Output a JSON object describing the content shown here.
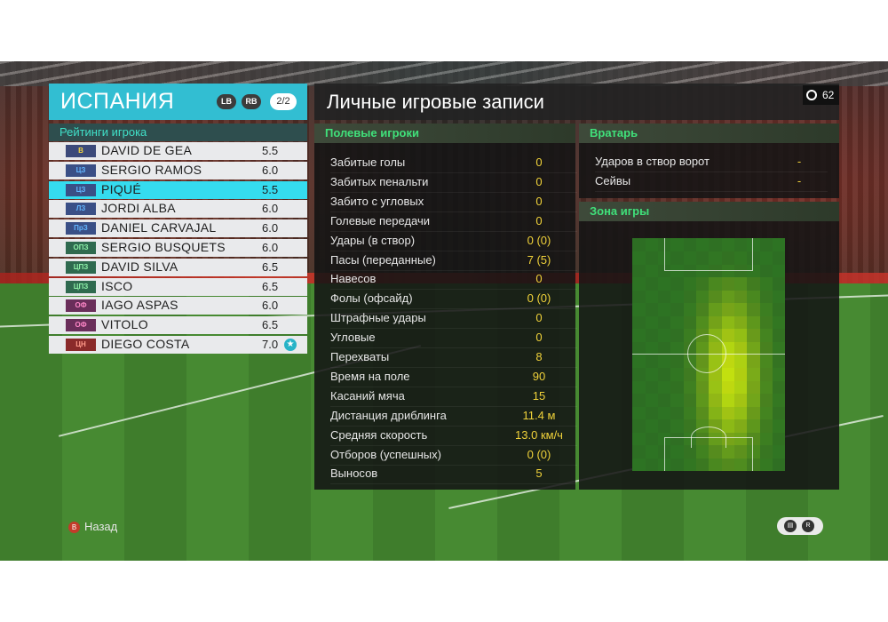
{
  "team": {
    "name": "ИСПАНИЯ",
    "lb": "LB",
    "rb": "RB",
    "page": "2/2"
  },
  "ratings_label": "Рейтинги игрока",
  "players": [
    {
      "pos": "В",
      "name": "DAVID DE GEA",
      "rating": "5.5"
    },
    {
      "pos": "ЦЗ",
      "name": "SERGIO RAMOS",
      "rating": "6.0"
    },
    {
      "pos": "ЦЗ",
      "name": "PIQUÉ",
      "rating": "5.5"
    },
    {
      "pos": "ЛЗ",
      "name": "JORDI ALBA",
      "rating": "6.0"
    },
    {
      "pos": "ПрЗ",
      "name": "DANIEL CARVAJAL",
      "rating": "6.0"
    },
    {
      "pos": "ОПЗ",
      "name": "SERGIO BUSQUETS",
      "rating": "6.0"
    },
    {
      "pos": "ЦПЗ",
      "name": "DAVID SILVA",
      "rating": "6.5"
    },
    {
      "pos": "ЦПЗ",
      "name": "ISCO",
      "rating": "6.5"
    },
    {
      "pos": "ОФ",
      "name": "IAGO ASPAS",
      "rating": "6.0"
    },
    {
      "pos": "ОФ",
      "name": "VITOLO",
      "rating": "6.5"
    },
    {
      "pos": "ЦН",
      "name": "DIEGO COSTA",
      "rating": "7.0"
    }
  ],
  "title": "Личные игровые записи",
  "timer": "62",
  "field": {
    "header": "Полевые игроки",
    "stats": [
      {
        "label": "Забитые голы",
        "value": "0"
      },
      {
        "label": "Забитых пенальти",
        "value": "0"
      },
      {
        "label": "Забито с угловых",
        "value": "0"
      },
      {
        "label": "Голевые передачи",
        "value": "0"
      },
      {
        "label": "Удары (в створ)",
        "value": "0 (0)"
      },
      {
        "label": "Пасы (переданные)",
        "value": "7 (5)"
      },
      {
        "label": "Навесов",
        "value": "0"
      },
      {
        "label": "Фолы (офсайд)",
        "value": "0 (0)"
      },
      {
        "label": "Штрафные удары",
        "value": "0"
      },
      {
        "label": "Угловые",
        "value": "0"
      },
      {
        "label": "Перехваты",
        "value": "8"
      },
      {
        "label": "Время на поле",
        "value": "90"
      },
      {
        "label": "Касаний мяча",
        "value": "15"
      },
      {
        "label": "Дистанция дриблинга",
        "value": "11.4 м"
      },
      {
        "label": "Средняя скорость",
        "value": "13.0 км/ч"
      },
      {
        "label": "Отборов (успешных)",
        "value": "0 (0)"
      },
      {
        "label": "Выносов",
        "value": "5"
      }
    ]
  },
  "goalkeeper": {
    "header": "Вратарь",
    "stats": [
      {
        "label": "Ударов в створ ворот",
        "value": "-"
      },
      {
        "label": "Сейвы",
        "value": "-"
      }
    ]
  },
  "zone_header": "Зона игры",
  "back_label": "Назад",
  "colors": {
    "accent": "#32bed2",
    "selected": "#35dcef",
    "stat_value": "#f0d23a",
    "section_head": "#40e07a"
  }
}
